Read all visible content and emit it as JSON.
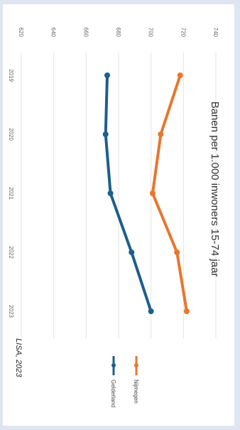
{
  "chart_data": {
    "type": "line",
    "title": "Banen per 1.000 inwoners 15-74 jaar",
    "source": "LISA, 2023",
    "x": [
      "2019",
      "2020",
      "2021",
      "2022",
      "2023"
    ],
    "ylim": [
      620,
      740
    ],
    "yticks": [
      620,
      640,
      660,
      680,
      700,
      720,
      740
    ],
    "ytick_labels": [
      "620",
      "640",
      "660",
      "680",
      "700",
      "720",
      "740"
    ],
    "grid": true,
    "legend_position": "right",
    "series": [
      {
        "name": "Gelderland",
        "color": "#1c5f8c",
        "values": [
          673,
          672,
          675,
          688,
          700
        ]
      },
      {
        "name": "Nijmegen",
        "color": "#e8772e",
        "values": [
          718,
          706,
          701,
          716,
          722
        ]
      }
    ]
  }
}
